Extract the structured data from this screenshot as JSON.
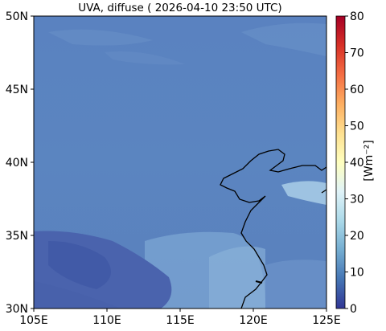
{
  "map": {
    "title": "UVA, diffuse ( 2026-04-10 23:50 UTC)",
    "units_label": "[Wm⁻²]",
    "lon_ticks": [
      "105E",
      "110E",
      "115E",
      "120E",
      "125E"
    ],
    "lat_ticks": [
      "50N",
      "45N",
      "40N",
      "35N",
      "30N"
    ],
    "lon_range": [
      105,
      125
    ],
    "lat_range": [
      30,
      50
    ],
    "colorbar": {
      "ticks": [
        "80",
        "70",
        "60",
        "50",
        "40",
        "30",
        "20",
        "10",
        "0"
      ],
      "range": [
        0,
        80
      ],
      "colormap": "RdYlBu_r"
    },
    "colors": {
      "background_field": "#5b84bf",
      "low_values": "#4b62ac",
      "high_values": "#8fb8dc",
      "coastline": "#000000"
    }
  }
}
